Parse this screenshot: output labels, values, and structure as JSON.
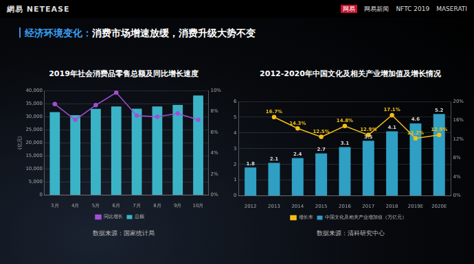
{
  "header": {
    "left_logo": "網易 NETEASE",
    "right_logos": [
      "网易",
      "网易新闻",
      "NFTC 2019",
      "MASERATI"
    ],
    "title_highlight": "经济环境变化：",
    "title_rest": "消费市场增速放缓，消费升级大势不变"
  },
  "sources": [
    "数据来源：国家统计局",
    "数据来源：清科研究中心"
  ],
  "chart_data": [
    {
      "type": "bar",
      "title": "2019年社会消费品零售总额及同比增长速度",
      "ylabel": "(亿元)",
      "categories": [
        "3月",
        "4月",
        "5月",
        "6月",
        "7月",
        "8月",
        "9月",
        "10月"
      ],
      "series": [
        {
          "name": "总额",
          "type": "bar",
          "color": "#3bb3c6",
          "values": [
            31726,
            30586,
            32956,
            33878,
            33073,
            33896,
            34495,
            38104
          ]
        },
        {
          "name": "同比增长",
          "type": "line",
          "color": "#a24fd6",
          "axis": "y2",
          "marker": "circle",
          "values": [
            8.7,
            7.2,
            8.6,
            9.8,
            7.6,
            7.5,
            7.8,
            7.2
          ]
        }
      ],
      "ylim": [
        0,
        40000
      ],
      "yticks": [
        0,
        {
          "value": 5000,
          "label": "5,000"
        },
        {
          "value": 10000,
          "label": "10,000"
        },
        {
          "value": 15000,
          "label": "15,000"
        },
        {
          "value": 20000,
          "label": "20,000"
        },
        {
          "value": 25000,
          "label": "25,000"
        },
        {
          "value": 30000,
          "label": "30,000"
        },
        {
          "value": 35000,
          "label": "35,000"
        },
        {
          "value": 40000,
          "label": "40,000"
        }
      ],
      "y2lim": [
        0,
        10
      ],
      "y2ticks": [
        {
          "value": 0,
          "label": "0%"
        },
        {
          "value": 2,
          "label": "2%"
        },
        {
          "value": 4,
          "label": "4%"
        },
        {
          "value": 6,
          "label": "6%"
        },
        {
          "value": 8,
          "label": "8%"
        },
        {
          "value": 10,
          "label": "10%"
        }
      ],
      "grid": true,
      "legend": "bottom"
    },
    {
      "type": "bar",
      "title": "2012-2020年中国文化及相关产业增加值及增长情况",
      "categories": [
        "2012",
        "2013",
        "2014",
        "2015",
        "2016",
        "2017",
        "2018",
        "2019E",
        "2020E"
      ],
      "series": [
        {
          "name": "中国文化及相关产业增加值（万亿元）",
          "type": "bar",
          "color": "#2f9fc4",
          "values": [
            1.8,
            2.1,
            2.4,
            2.7,
            3.1,
            3.5,
            4.1,
            4.6,
            5.2
          ]
        },
        {
          "name": "增长率",
          "type": "line",
          "color": "#f2c014",
          "axis": "y2",
          "marker": "circle",
          "values": [
            null,
            16.7,
            14.3,
            12.5,
            14.8,
            12.9,
            17.1,
            12.2,
            12.9
          ],
          "value_labels": [
            null,
            "16.7%",
            "14.3%",
            "12.5%",
            "14.8%",
            "12.9%",
            "17.1%",
            "12.2%",
            "12.9%"
          ]
        }
      ],
      "ylim": [
        0,
        6
      ],
      "yticks": [
        0,
        1,
        2,
        3,
        4,
        5,
        6
      ],
      "y2lim": [
        0,
        20
      ],
      "y2ticks": [
        {
          "value": 0,
          "label": "0%"
        },
        {
          "value": 4,
          "label": "4%"
        },
        {
          "value": 8,
          "label": "8%"
        },
        {
          "value": 12,
          "label": "12%"
        },
        {
          "value": 16,
          "label": "16%"
        },
        {
          "value": 20,
          "label": "20%"
        }
      ],
      "grid": true,
      "legend": "bottom",
      "data_labels": true
    }
  ]
}
